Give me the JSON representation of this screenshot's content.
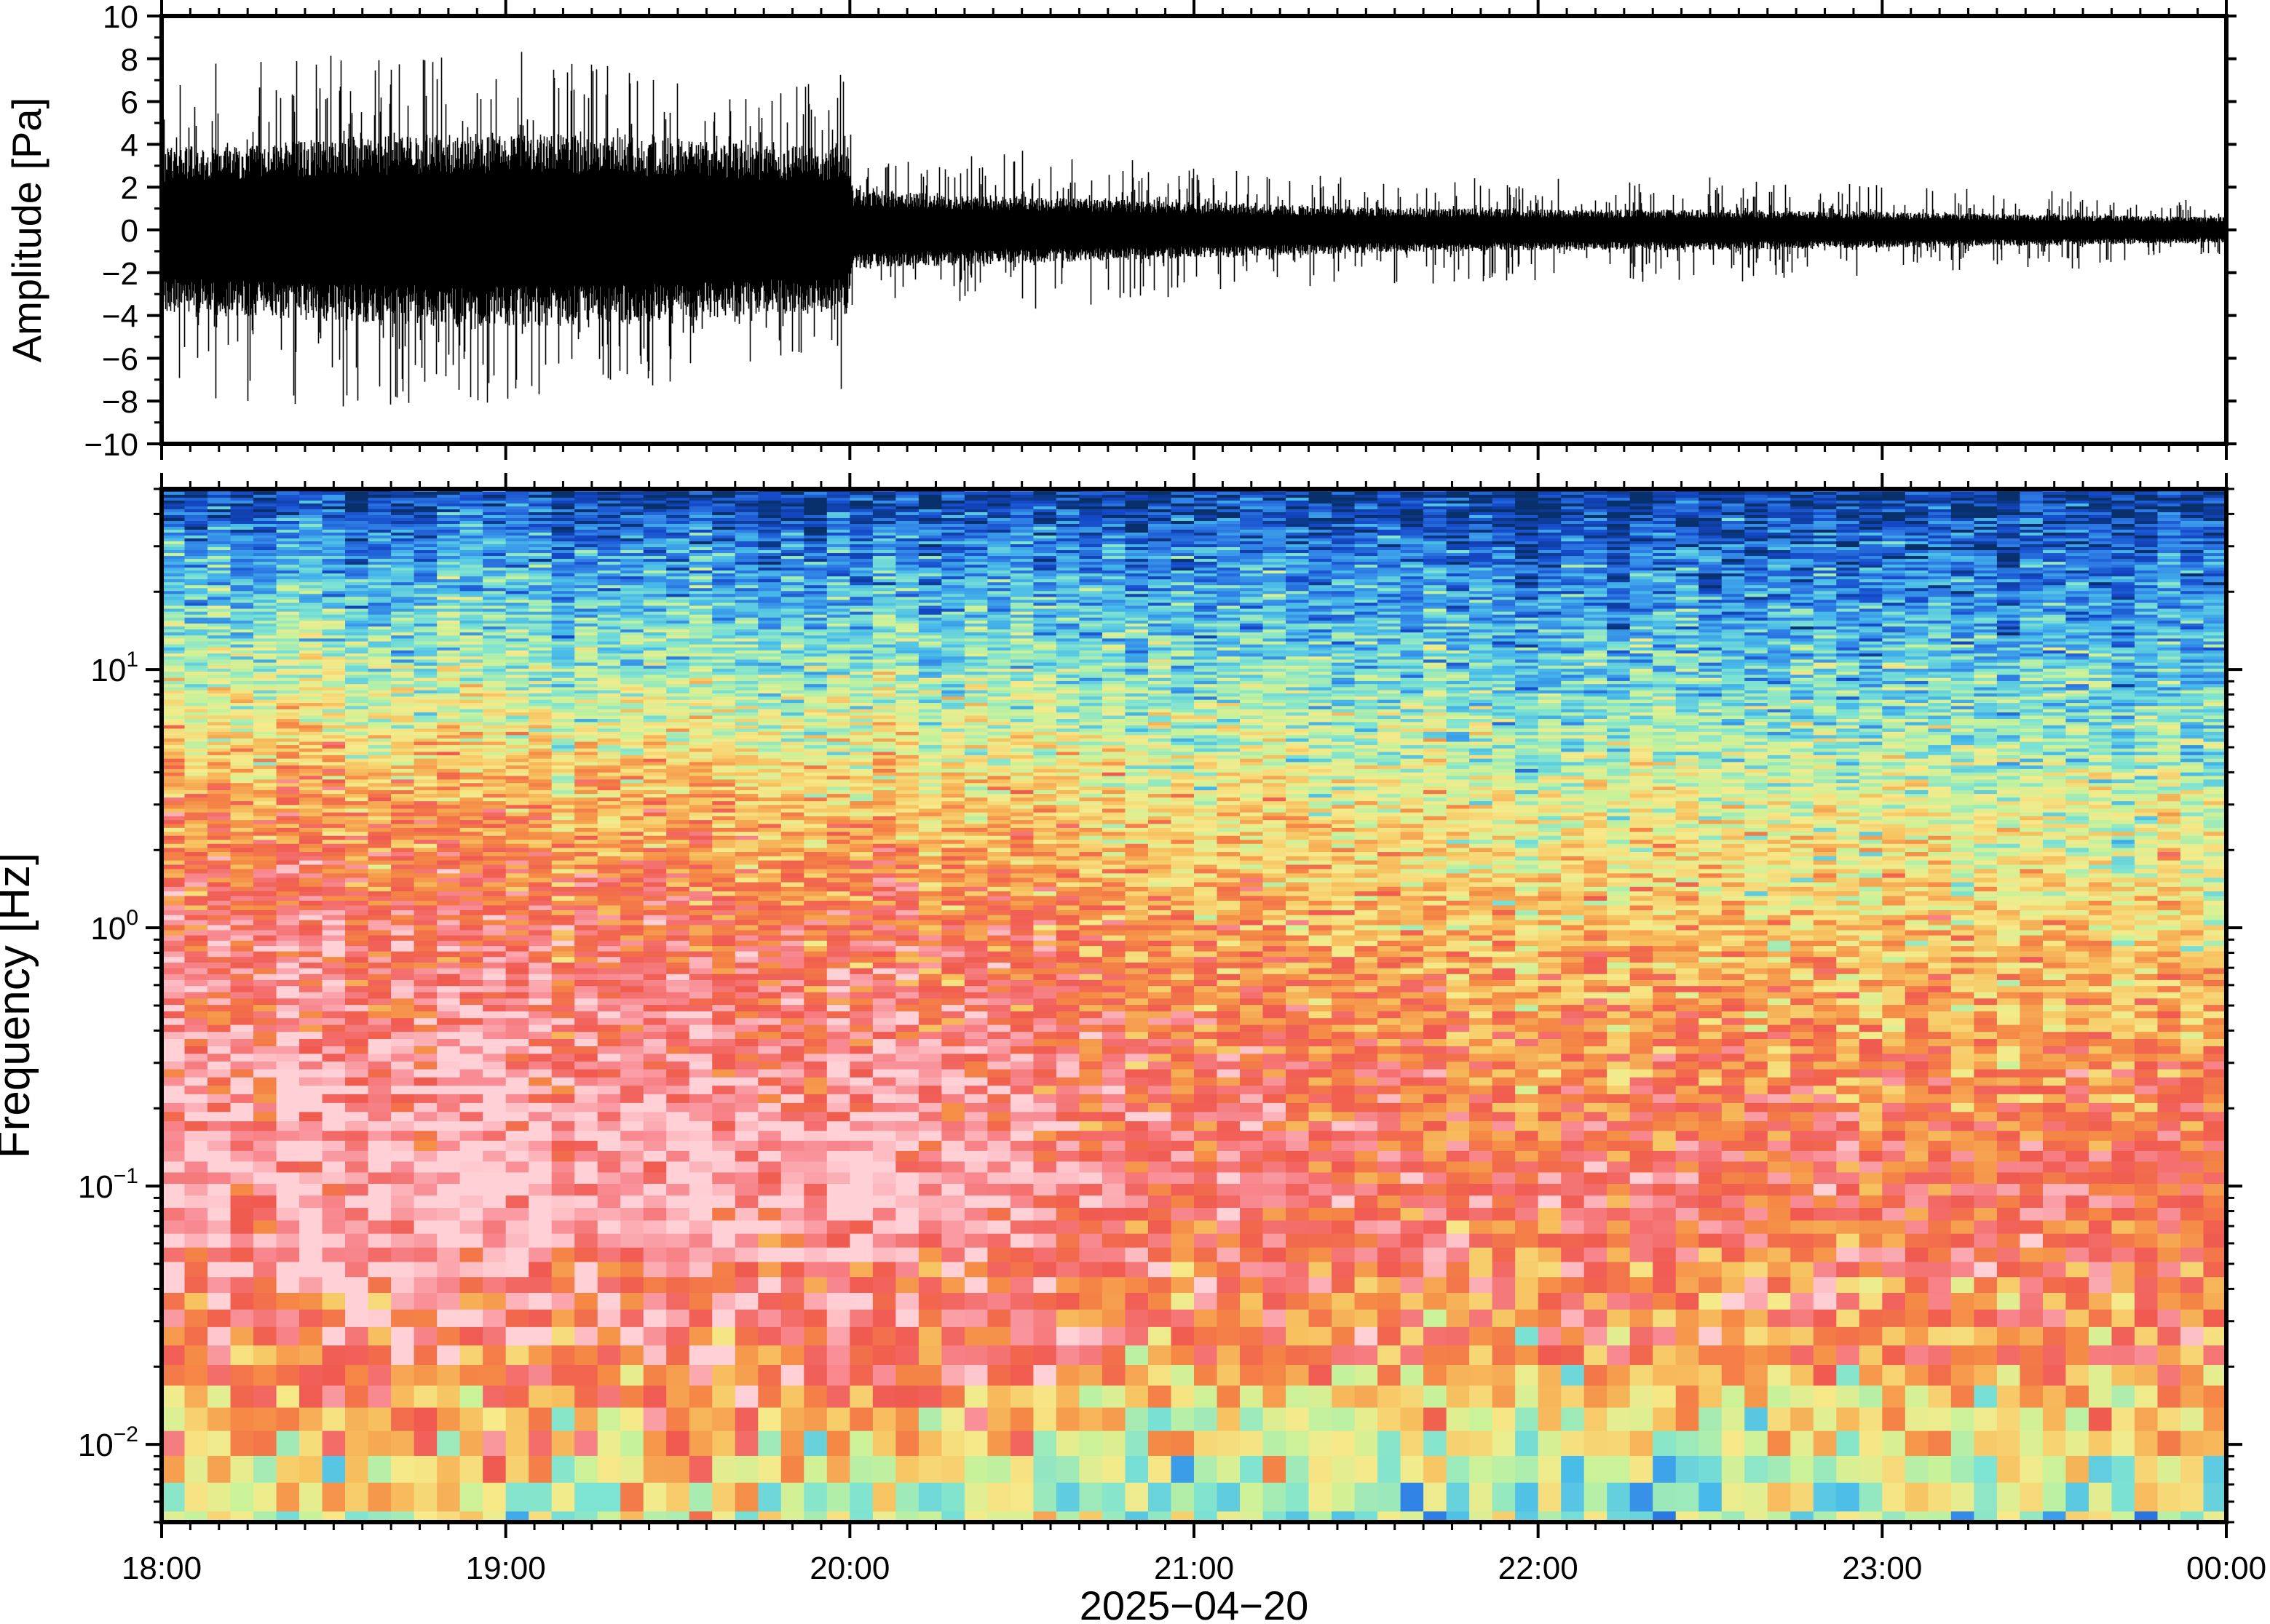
{
  "chart_data": [
    {
      "type": "line",
      "panel": "waveform",
      "ylabel": "Amplitude [Pa]",
      "ylim": [
        -10,
        10
      ],
      "yticks": [
        {
          "v": 10,
          "label": "10"
        },
        {
          "v": 8,
          "label": "8"
        },
        {
          "v": 6,
          "label": "6"
        },
        {
          "v": 4,
          "label": "4"
        },
        {
          "v": 2,
          "label": "2"
        },
        {
          "v": 0,
          "label": "0"
        },
        {
          "v": -2,
          "label": "−2"
        },
        {
          "v": -4,
          "label": "−4"
        },
        {
          "v": -6,
          "label": "−6"
        },
        {
          "v": -8,
          "label": "−8"
        },
        {
          "v": -10,
          "label": "−10"
        }
      ],
      "xlim": [
        "18:00",
        "00:00"
      ],
      "envelope": {
        "time_h": [
          0.0,
          0.25,
          0.5,
          0.75,
          1.0,
          1.25,
          1.5,
          1.75,
          1.99,
          2.01,
          2.25,
          2.5,
          2.75,
          3.0,
          3.25,
          3.5,
          3.75,
          4.0,
          4.25,
          4.5,
          4.75,
          5.0,
          5.25,
          5.5,
          5.75,
          6.0
        ],
        "core_amp_pa": [
          3.2,
          3.4,
          3.6,
          3.7,
          3.8,
          3.7,
          3.5,
          3.3,
          3.3,
          1.6,
          1.4,
          1.3,
          1.2,
          1.1,
          1.0,
          0.9,
          0.85,
          0.8,
          0.8,
          0.8,
          0.75,
          0.7,
          0.65,
          0.6,
          0.55,
          0.5
        ],
        "peak_amp_pa": [
          7.8,
          8.0,
          8.5,
          8.5,
          8.4,
          8.2,
          7.0,
          6.6,
          7.8,
          3.0,
          3.5,
          3.8,
          3.5,
          3.0,
          2.8,
          2.6,
          2.5,
          2.4,
          2.5,
          2.5,
          2.3,
          2.2,
          2.0,
          1.9,
          1.6,
          1.4
        ]
      }
    },
    {
      "type": "heatmap",
      "panel": "spectrogram",
      "ylabel": "Frequency [Hz]",
      "xlabel": "2025−04−20",
      "yscale": "log",
      "ylim": [
        0.005,
        50
      ],
      "yticks": [
        {
          "v": 10,
          "base": "10",
          "exp": "1"
        },
        {
          "v": 1,
          "base": "10",
          "exp": "0"
        },
        {
          "v": 0.1,
          "base": "10",
          "exp": "−1"
        },
        {
          "v": 0.01,
          "base": "10",
          "exp": "−2"
        }
      ],
      "xticks": [
        "18:00",
        "19:00",
        "20:00",
        "21:00",
        "22:00",
        "23:00",
        "00:00"
      ],
      "colormap": [
        "#08306b",
        "#1448c8",
        "#2f7fe6",
        "#47b9ea",
        "#7de3d2",
        "#c7f29a",
        "#f6ea8a",
        "#f7c260",
        "#f58a45",
        "#f05a50",
        "#f88a92",
        "#ffd0d6"
      ],
      "time_h": [
        0,
        1,
        2,
        3,
        4,
        5,
        6
      ],
      "freq_hz": [
        0.006,
        0.012,
        0.025,
        0.1,
        0.3,
        1,
        3,
        10,
        30,
        50
      ],
      "intensity": [
        [
          0.5,
          0.55,
          0.52,
          0.42,
          0.38,
          0.4,
          0.43
        ],
        [
          0.62,
          0.68,
          0.66,
          0.58,
          0.56,
          0.57,
          0.6
        ],
        [
          0.8,
          0.86,
          0.84,
          0.76,
          0.72,
          0.72,
          0.74
        ],
        [
          0.95,
          1.0,
          0.98,
          0.86,
          0.83,
          0.83,
          0.82
        ],
        [
          0.9,
          0.93,
          0.9,
          0.8,
          0.74,
          0.72,
          0.7
        ],
        [
          0.85,
          0.84,
          0.8,
          0.7,
          0.63,
          0.6,
          0.58
        ],
        [
          0.7,
          0.68,
          0.64,
          0.56,
          0.52,
          0.5,
          0.47
        ],
        [
          0.46,
          0.43,
          0.41,
          0.37,
          0.33,
          0.31,
          0.29
        ],
        [
          0.22,
          0.21,
          0.2,
          0.17,
          0.15,
          0.14,
          0.13
        ],
        [
          0.04,
          0.04,
          0.03,
          0.02,
          0.02,
          0.01,
          0.01
        ]
      ]
    }
  ]
}
